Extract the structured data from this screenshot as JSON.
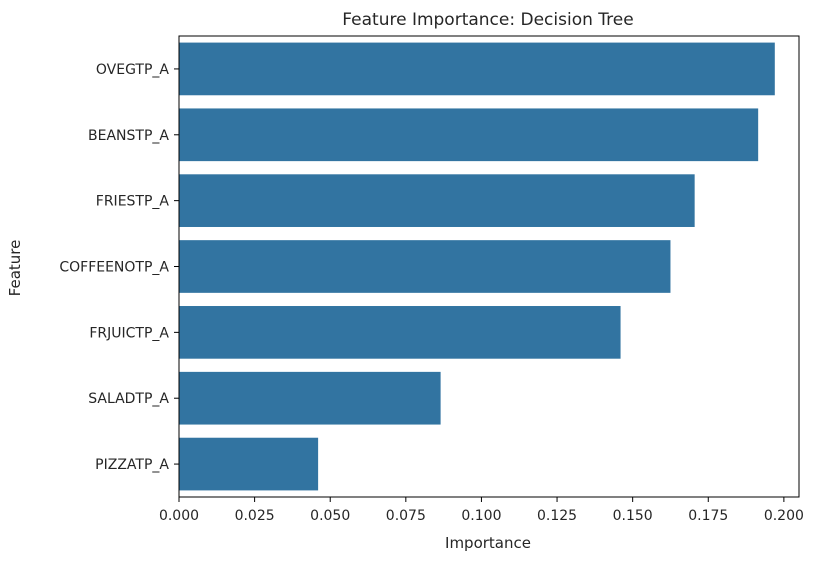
{
  "chart_data": {
    "type": "bar",
    "orientation": "horizontal",
    "title": "Feature Importance: Decision Tree",
    "xlabel": "Importance",
    "ylabel": "Feature",
    "categories": [
      "OVEGTP_A",
      "BEANSTP_A",
      "FRIESTP_A",
      "COFFEENOTP_A",
      "FRJUICTP_A",
      "SALADTP_A",
      "PIZZATP_A"
    ],
    "values": [
      0.197,
      0.1915,
      0.1705,
      0.1625,
      0.146,
      0.0865,
      0.046
    ],
    "xlim": [
      0,
      0.205
    ],
    "xticks": [
      "0.000",
      "0.025",
      "0.050",
      "0.075",
      "0.100",
      "0.125",
      "0.150",
      "0.175",
      "0.200"
    ],
    "bar_color": "#3274a1",
    "grid": false,
    "legend": "none"
  }
}
